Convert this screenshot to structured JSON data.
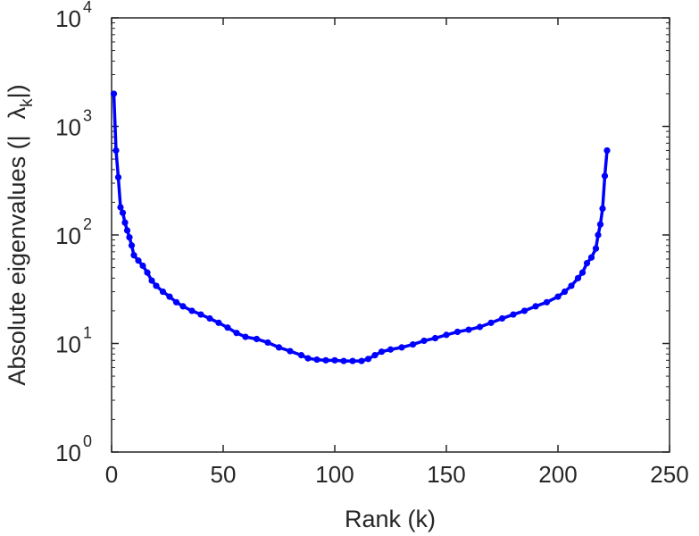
{
  "chart_data": {
    "type": "line",
    "title": "",
    "xlabel": "Rank (k)",
    "ylabel": "Absolute eigenvalues (|λ_k|)",
    "ylabel_parts": {
      "prefix": "Absolute eigenvalues (|",
      "symbol": "λ",
      "subscript": "k",
      "suffix": "|)"
    },
    "xlim": [
      0,
      250
    ],
    "ylim": [
      1,
      10000
    ],
    "yscale": "log",
    "grid": false,
    "legend": "none",
    "x_ticks": [
      "0",
      "50",
      "100",
      "150",
      "200",
      "250"
    ],
    "y_ticks": [
      {
        "base": "10",
        "exp": "0"
      },
      {
        "base": "10",
        "exp": "1"
      },
      {
        "base": "10",
        "exp": "2"
      },
      {
        "base": "10",
        "exp": "3"
      },
      {
        "base": "10",
        "exp": "4"
      }
    ],
    "color": "#0000ff",
    "series": [
      {
        "x": [
          1,
          2,
          3,
          4,
          5,
          6,
          7,
          8,
          9,
          10,
          12,
          14,
          16,
          18,
          20,
          23,
          26,
          29,
          32,
          36,
          40,
          44,
          48,
          52,
          56,
          60,
          65,
          70,
          75,
          80,
          85,
          88,
          92,
          96,
          100,
          104,
          108,
          112,
          115,
          118,
          121,
          125,
          130,
          135,
          140,
          145,
          150,
          155,
          160,
          165,
          170,
          175,
          180,
          185,
          190,
          195,
          200,
          203,
          206,
          209,
          211,
          213,
          215,
          217,
          218,
          219,
          220,
          221,
          222
        ],
        "y": [
          2000,
          600,
          340,
          180,
          160,
          130,
          110,
          95,
          80,
          65,
          58,
          52,
          45,
          38,
          34,
          30,
          27,
          24,
          22,
          20,
          18.5,
          17,
          15.5,
          14,
          12.5,
          11.5,
          11,
          10.2,
          9.2,
          8.5,
          7.8,
          7.3,
          7.1,
          7.0,
          7.0,
          6.9,
          6.9,
          6.9,
          7.2,
          7.8,
          8.4,
          8.8,
          9.2,
          9.8,
          10.6,
          11.2,
          12,
          12.8,
          13.4,
          14.2,
          15.5,
          17,
          18.5,
          20,
          22,
          24,
          27,
          30,
          34,
          40,
          45,
          55,
          62,
          75,
          100,
          125,
          175,
          350,
          600
        ]
      }
    ]
  }
}
